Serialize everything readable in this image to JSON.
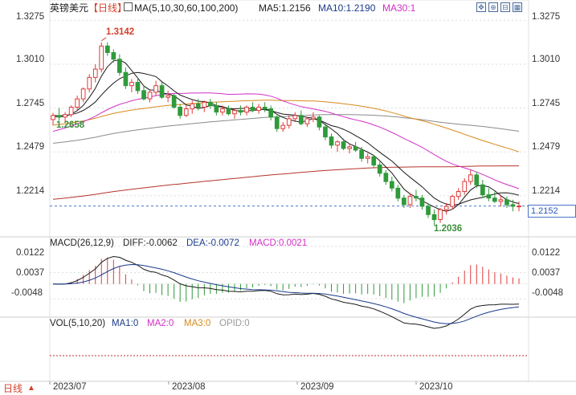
{
  "header": {
    "symbol": "英镑美元",
    "period": "【日线】",
    "ma_params": "MA(5,10,30,60,100,200)",
    "ma5": "MA5:1.2156",
    "ma10": "MA10:1.2190",
    "ma30": "MA30:1"
  },
  "toolbar": {
    "icons": [
      "move-icon",
      "zoom-in-icon",
      "collapse-icon",
      "grid-icon"
    ],
    "glyphs": [
      "✥",
      "⊕",
      "⊟",
      "▦"
    ]
  },
  "price_axis": {
    "ticks": [
      "1.3275",
      "1.3010",
      "1.2745",
      "1.2479",
      "1.2214"
    ],
    "tick_values": [
      1.3275,
      1.301,
      1.2745,
      1.2479,
      1.2214
    ],
    "current_price": "1.2152",
    "current_value": 1.2152
  },
  "annotations": {
    "high": "1.3142",
    "start": "1.2658",
    "low": "1.2036"
  },
  "macd": {
    "label": "MACD(26,12,9)",
    "diff": "DIFF:-0.0062",
    "dea": "DEA:-0.0072",
    "macd": "MACD:0.0021",
    "ticks": [
      "0.0122",
      "0.0037",
      "-0.0048"
    ]
  },
  "volume": {
    "label": "VOL(5,10,20)",
    "ma1": "MA1:0",
    "ma2": "MA2:0",
    "ma3": "MA3:0",
    "opid": "OPID:0"
  },
  "x_axis": {
    "labels": [
      "2023/07",
      "2023/08",
      "2023/09",
      "2023/10"
    ]
  },
  "footer": {
    "period_selector": "日线",
    "arrow": "▲"
  },
  "colors": {
    "up": "#e03a3a",
    "down": "#2f9a3a",
    "ma5": "#1a1a1a",
    "ma10": "#1a1a1a",
    "ma30": "#d22fc6",
    "ma60": "#d88a1c",
    "ma100": "#8a8a8a",
    "ma200": "#b5332a",
    "diff_line": "#1a1a1a",
    "dea_line": "#1a3a8a",
    "axis_text": "#333333",
    "grid": "#dddddd"
  },
  "chart_data": {
    "type": "candlestick",
    "title": "英镑美元",
    "period": "日线",
    "y_range": [
      1.198,
      1.334
    ],
    "high": 1.3142,
    "low": 1.2036,
    "last": 1.2152,
    "ohlc": [
      [
        1.2675,
        1.2715,
        1.264,
        1.27
      ],
      [
        1.27,
        1.2745,
        1.267,
        1.269
      ],
      [
        1.269,
        1.272,
        1.2655,
        1.2705
      ],
      [
        1.2705,
        1.276,
        1.269,
        1.275
      ],
      [
        1.275,
        1.282,
        1.273,
        1.28
      ],
      [
        1.28,
        1.287,
        1.278,
        1.286
      ],
      [
        1.286,
        1.295,
        1.284,
        1.293
      ],
      [
        1.293,
        1.301,
        1.29,
        1.298
      ],
      [
        1.298,
        1.3142,
        1.296,
        1.312
      ],
      [
        1.312,
        1.3142,
        1.306,
        1.308
      ],
      [
        1.308,
        1.31,
        1.302,
        1.304
      ],
      [
        1.304,
        1.307,
        1.294,
        1.296
      ],
      [
        1.296,
        1.299,
        1.286,
        1.288
      ],
      [
        1.288,
        1.292,
        1.284,
        1.29
      ],
      [
        1.29,
        1.293,
        1.283,
        1.285
      ],
      [
        1.285,
        1.288,
        1.279,
        1.28
      ],
      [
        1.28,
        1.286,
        1.278,
        1.284
      ],
      [
        1.284,
        1.291,
        1.282,
        1.288
      ],
      [
        1.288,
        1.29,
        1.28,
        1.281
      ],
      [
        1.281,
        1.285,
        1.278,
        1.282
      ],
      [
        1.282,
        1.283,
        1.274,
        1.275
      ],
      [
        1.275,
        1.277,
        1.268,
        1.27
      ],
      [
        1.27,
        1.276,
        1.269,
        1.274
      ],
      [
        1.274,
        1.279,
        1.271,
        1.277
      ],
      [
        1.277,
        1.28,
        1.273,
        1.275
      ],
      [
        1.275,
        1.279,
        1.272,
        1.278
      ],
      [
        1.278,
        1.28,
        1.274,
        1.276
      ],
      [
        1.276,
        1.278,
        1.27,
        1.272
      ],
      [
        1.272,
        1.276,
        1.27,
        1.274
      ],
      [
        1.274,
        1.276,
        1.27,
        1.271
      ],
      [
        1.271,
        1.274,
        1.268,
        1.273
      ],
      [
        1.273,
        1.276,
        1.27,
        1.272
      ],
      [
        1.272,
        1.276,
        1.27,
        1.275
      ],
      [
        1.275,
        1.278,
        1.272,
        1.273
      ],
      [
        1.273,
        1.277,
        1.271,
        1.275
      ],
      [
        1.275,
        1.278,
        1.272,
        1.274
      ],
      [
        1.274,
        1.276,
        1.267,
        1.269
      ],
      [
        1.269,
        1.27,
        1.26,
        1.262
      ],
      [
        1.262,
        1.266,
        1.26,
        1.264
      ],
      [
        1.264,
        1.27,
        1.262,
        1.268
      ],
      [
        1.268,
        1.272,
        1.266,
        1.27
      ],
      [
        1.27,
        1.273,
        1.264,
        1.265
      ],
      [
        1.265,
        1.269,
        1.263,
        1.268
      ],
      [
        1.268,
        1.272,
        1.266,
        1.269
      ],
      [
        1.269,
        1.27,
        1.261,
        1.263
      ],
      [
        1.263,
        1.265,
        1.255,
        1.257
      ],
      [
        1.257,
        1.259,
        1.25,
        1.252
      ],
      [
        1.252,
        1.255,
        1.248,
        1.254
      ],
      [
        1.254,
        1.256,
        1.249,
        1.25
      ],
      [
        1.25,
        1.253,
        1.247,
        1.251
      ],
      [
        1.251,
        1.254,
        1.248,
        1.249
      ],
      [
        1.249,
        1.251,
        1.242,
        1.244
      ],
      [
        1.244,
        1.247,
        1.241,
        1.245
      ],
      [
        1.245,
        1.246,
        1.238,
        1.24
      ],
      [
        1.24,
        1.242,
        1.233,
        1.235
      ],
      [
        1.235,
        1.237,
        1.228,
        1.23
      ],
      [
        1.23,
        1.233,
        1.224,
        1.226
      ],
      [
        1.226,
        1.228,
        1.218,
        1.22
      ],
      [
        1.22,
        1.222,
        1.214,
        1.216
      ],
      [
        1.216,
        1.223,
        1.214,
        1.221
      ],
      [
        1.221,
        1.225,
        1.218,
        1.22
      ],
      [
        1.22,
        1.222,
        1.213,
        1.215
      ],
      [
        1.215,
        1.217,
        1.208,
        1.21
      ],
      [
        1.21,
        1.213,
        1.2036,
        1.207
      ],
      [
        1.207,
        1.214,
        1.205,
        1.213
      ],
      [
        1.213,
        1.217,
        1.21,
        1.215
      ],
      [
        1.215,
        1.222,
        1.213,
        1.221
      ],
      [
        1.221,
        1.226,
        1.219,
        1.224
      ],
      [
        1.224,
        1.232,
        1.222,
        1.23
      ],
      [
        1.23,
        1.237,
        1.228,
        1.234
      ],
      [
        1.234,
        1.236,
        1.226,
        1.228
      ],
      [
        1.228,
        1.231,
        1.22,
        1.222
      ],
      [
        1.222,
        1.226,
        1.218,
        1.22
      ],
      [
        1.22,
        1.224,
        1.217,
        1.218
      ],
      [
        1.218,
        1.222,
        1.215,
        1.219
      ],
      [
        1.219,
        1.221,
        1.214,
        1.216
      ],
      [
        1.216,
        1.219,
        1.212,
        1.215
      ],
      [
        1.215,
        1.218,
        1.212,
        1.2152
      ]
    ]
  }
}
